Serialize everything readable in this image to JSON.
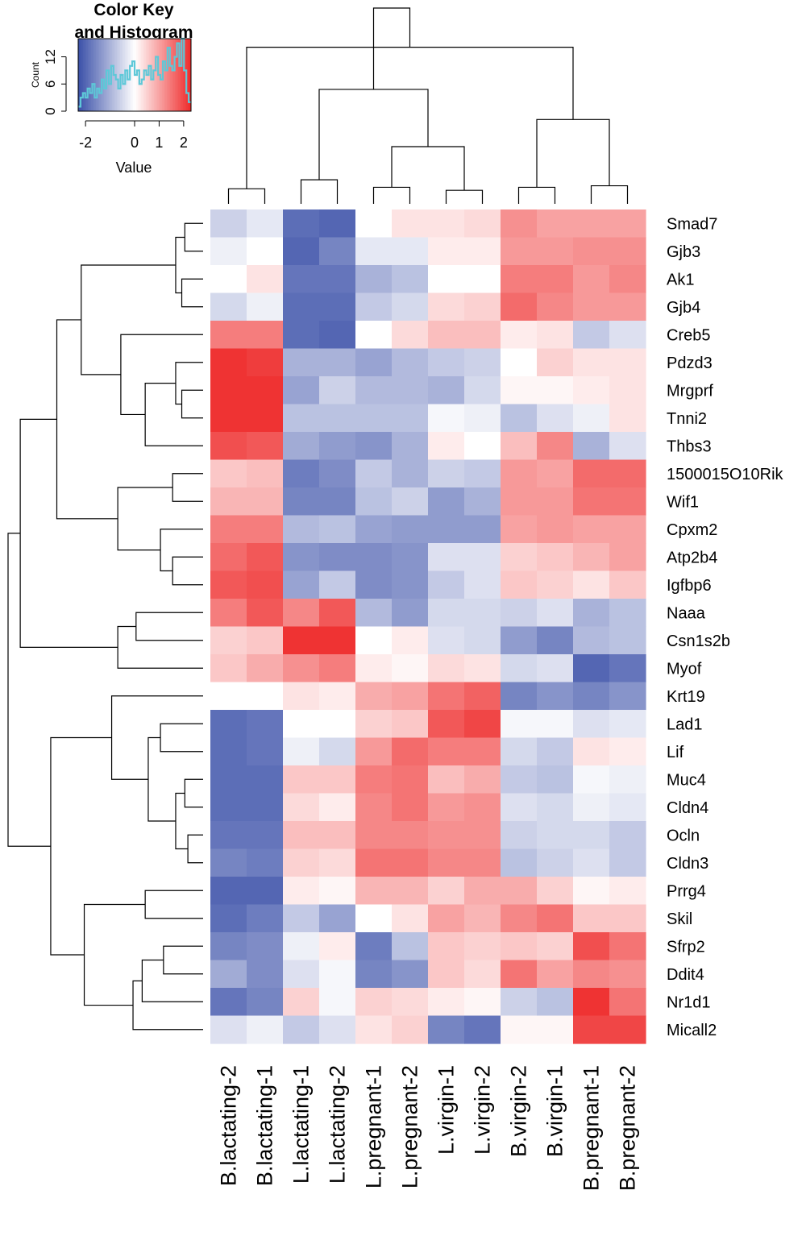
{
  "chart_data": {
    "type": "heatmap",
    "title": "",
    "colors": {
      "low": "#3a4fa8",
      "mid": "#ffffff",
      "high": "#ee2a2a",
      "histogram": "#5ec8d8"
    },
    "color_key": {
      "title_line1": "Color Key",
      "title_line2": "and Histogram",
      "xlabel": "Value",
      "ylabel": "Count",
      "xticks": [
        "-2",
        "0",
        "1",
        "2"
      ],
      "xtick_values": [
        -2,
        0,
        1,
        2
      ],
      "yticks": [
        "0",
        "6",
        "12"
      ],
      "ytick_values": [
        0,
        6,
        12
      ],
      "range": [
        -2.3,
        2.3
      ],
      "ylim": [
        0,
        16
      ],
      "histogram": [
        1,
        3,
        4,
        3,
        5,
        4,
        6,
        3,
        5,
        4,
        7,
        5,
        9,
        6,
        10,
        8,
        7,
        5,
        8,
        6,
        9,
        7,
        10,
        11,
        8,
        9,
        6,
        7,
        9,
        8,
        10,
        7,
        9,
        12,
        8,
        7,
        11,
        9,
        14,
        10,
        9,
        12,
        15,
        10,
        16,
        9,
        4,
        2
      ]
    },
    "columns": [
      "B.lactating-2",
      "B.lactating-1",
      "L.lactating-1",
      "L.lactating-2",
      "L.pregnant-1",
      "L.pregnant-2",
      "L.virgin-1",
      "L.virgin-2",
      "B.virgin-2",
      "B.virgin-1",
      "B.pregnant-1",
      "B.pregnant-2"
    ],
    "rows": [
      "Smad7",
      "Gjb3",
      "Ak1",
      "Gjb4",
      "Creb5",
      "Pdzd3",
      "Mrgprf",
      "Tnni2",
      "Thbs3",
      "1500015O10Rik",
      "Wif1",
      "Cpxm2",
      "Atp2b4",
      "Igfbp6",
      "Naaa",
      "Csn1s2b",
      "Myof",
      "Krt19",
      "Lad1",
      "Lif",
      "Muc4",
      "Cldn4",
      "Ocln",
      "Cldn3",
      "Prrg4",
      "Skil",
      "Sfrp2",
      "Ddit4",
      "Nr1d1",
      "Micall2"
    ],
    "values": [
      [
        -0.6,
        -0.3,
        -1.9,
        -2.0,
        0.0,
        0.3,
        0.3,
        0.4,
        1.2,
        1.0,
        1.0,
        1.0
      ],
      [
        -0.2,
        0.0,
        -2.0,
        -1.6,
        -0.3,
        -0.3,
        0.2,
        0.2,
        1.1,
        1.1,
        1.2,
        1.2
      ],
      [
        0.0,
        0.3,
        -1.8,
        -1.8,
        -1.0,
        -0.8,
        0.0,
        0.0,
        1.4,
        1.4,
        1.1,
        1.3
      ],
      [
        -0.5,
        -0.2,
        -1.9,
        -1.9,
        -0.7,
        -0.5,
        0.4,
        0.5,
        1.6,
        1.3,
        1.1,
        1.1
      ],
      [
        1.4,
        1.4,
        -1.9,
        -2.0,
        0.0,
        0.4,
        0.7,
        0.7,
        0.2,
        0.3,
        -0.7,
        -0.4
      ],
      [
        2.2,
        2.1,
        -1.0,
        -1.0,
        -1.2,
        -0.9,
        -0.7,
        -0.6,
        0.0,
        0.5,
        0.3,
        0.3
      ],
      [
        2.2,
        2.2,
        -1.2,
        -0.6,
        -0.9,
        -0.9,
        -1.0,
        -0.5,
        0.1,
        0.1,
        0.2,
        0.3
      ],
      [
        2.2,
        2.2,
        -0.8,
        -0.8,
        -0.8,
        -0.8,
        -0.1,
        -0.2,
        -0.8,
        -0.4,
        -0.2,
        0.3
      ],
      [
        1.9,
        1.8,
        -1.1,
        -1.3,
        -1.4,
        -1.0,
        0.2,
        0.0,
        0.7,
        1.3,
        -1.0,
        -0.4
      ],
      [
        0.6,
        0.7,
        -1.7,
        -1.5,
        -0.7,
        -1.0,
        -0.6,
        -0.7,
        1.1,
        1.0,
        1.6,
        1.6
      ],
      [
        0.8,
        0.8,
        -1.6,
        -1.6,
        -0.8,
        -0.6,
        -1.3,
        -1.0,
        1.1,
        1.1,
        1.5,
        1.5
      ],
      [
        1.4,
        1.4,
        -0.9,
        -0.8,
        -1.2,
        -1.3,
        -1.3,
        -1.3,
        1.0,
        1.1,
        1.0,
        1.0
      ],
      [
        1.6,
        1.8,
        -1.4,
        -1.5,
        -1.5,
        -1.4,
        -0.4,
        -0.4,
        0.5,
        0.6,
        0.8,
        1.0
      ],
      [
        1.8,
        1.9,
        -1.2,
        -0.7,
        -1.5,
        -1.4,
        -0.7,
        -0.4,
        0.6,
        0.5,
        0.3,
        0.6
      ],
      [
        1.4,
        1.8,
        1.3,
        1.8,
        -0.9,
        -1.3,
        -0.5,
        -0.5,
        -0.6,
        -0.4,
        -1.0,
        -0.8
      ],
      [
        0.5,
        0.6,
        2.2,
        2.2,
        0.0,
        0.2,
        -0.4,
        -0.5,
        -1.3,
        -1.6,
        -0.9,
        -0.8
      ],
      [
        0.6,
        0.9,
        1.2,
        1.4,
        0.2,
        0.1,
        0.4,
        0.3,
        -0.5,
        -0.4,
        -2.0,
        -1.8
      ],
      [
        0.0,
        0.0,
        0.3,
        0.2,
        0.9,
        1.0,
        1.5,
        1.7,
        -1.6,
        -1.4,
        -1.6,
        -1.4
      ],
      [
        -1.9,
        -1.8,
        0.0,
        0.0,
        0.5,
        0.6,
        1.8,
        2.0,
        -0.1,
        -0.1,
        -0.4,
        -0.3
      ],
      [
        -1.9,
        -1.8,
        -0.2,
        -0.5,
        1.1,
        1.6,
        1.4,
        1.4,
        -0.5,
        -0.7,
        0.3,
        0.2
      ],
      [
        -1.9,
        -1.9,
        0.6,
        0.6,
        1.4,
        1.5,
        0.7,
        0.9,
        -0.7,
        -0.8,
        -0.1,
        -0.2
      ],
      [
        -1.9,
        -1.9,
        0.4,
        0.2,
        1.3,
        1.5,
        1.1,
        1.2,
        -0.4,
        -0.5,
        -0.2,
        -0.3
      ],
      [
        -1.8,
        -1.8,
        0.7,
        0.7,
        1.3,
        1.3,
        1.2,
        1.2,
        -0.6,
        -0.5,
        -0.5,
        -0.7
      ],
      [
        -1.6,
        -1.7,
        0.5,
        0.4,
        1.5,
        1.5,
        1.3,
        1.3,
        -0.8,
        -0.6,
        -0.4,
        -0.7
      ],
      [
        -2.0,
        -2.0,
        0.2,
        0.1,
        0.8,
        0.8,
        0.5,
        0.9,
        0.9,
        0.5,
        0.1,
        0.2
      ],
      [
        -1.9,
        -1.7,
        -0.7,
        -1.2,
        0.0,
        0.3,
        1.0,
        0.8,
        1.3,
        1.5,
        0.6,
        0.6
      ],
      [
        -1.6,
        -1.5,
        -0.2,
        0.2,
        -1.7,
        -0.8,
        0.6,
        0.5,
        0.6,
        0.5,
        1.9,
        1.5
      ],
      [
        -1.1,
        -1.5,
        -0.4,
        -0.1,
        -1.6,
        -1.4,
        0.6,
        0.4,
        1.5,
        1.0,
        1.3,
        1.2
      ],
      [
        -1.8,
        -1.6,
        0.5,
        -0.1,
        0.5,
        0.4,
        0.2,
        0.1,
        -0.6,
        -0.8,
        2.2,
        1.5
      ],
      [
        -0.4,
        -0.2,
        -0.7,
        -0.4,
        0.3,
        0.5,
        -1.6,
        -1.8,
        0.1,
        0.1,
        2.0,
        2.0
      ]
    ],
    "col_dendrogram": [
      {
        "a": 0,
        "b": 1,
        "h": 0.5
      },
      {
        "a": 2,
        "b": 3,
        "h": 0.8
      },
      {
        "a": 4,
        "b": 5,
        "h": 0.55
      },
      {
        "a": 6,
        "b": 7,
        "h": 0.45
      },
      {
        "a": 8,
        "b": 9,
        "h": 0.55
      },
      {
        "a": 10,
        "b": 11,
        "h": 0.6
      },
      {
        "a": 14,
        "b": 15,
        "h": 1.9
      },
      {
        "a": 16,
        "b": 17,
        "h": 2.8
      },
      {
        "a": 13,
        "b": 18,
        "h": 3.8
      },
      {
        "a": 12,
        "b": 19,
        "h": 5.2
      },
      {
        "a": 20,
        "b": 21,
        "h": 6.5
      }
    ],
    "row_dendrogram": [
      {
        "a": 0,
        "b": 1,
        "h": 0.3
      },
      {
        "a": 2,
        "b": 3,
        "h": 0.35
      },
      {
        "a": 30,
        "b": 31,
        "h": 0.45
      },
      {
        "a": 6,
        "b": 7,
        "h": 0.35
      },
      {
        "a": 5,
        "b": 33,
        "h": 0.45
      },
      {
        "a": 34,
        "b": 8,
        "h": 0.95
      },
      {
        "a": 4,
        "b": 35,
        "h": 1.35
      },
      {
        "a": 32,
        "b": 36,
        "h": 2.0
      },
      {
        "a": 9,
        "b": 10,
        "h": 0.5
      },
      {
        "a": 12,
        "b": 13,
        "h": 0.5
      },
      {
        "a": 11,
        "b": 39,
        "h": 0.7
      },
      {
        "a": 38,
        "b": 40,
        "h": 1.4
      },
      {
        "a": 37,
        "b": 41,
        "h": 2.4
      },
      {
        "a": 14,
        "b": 15,
        "h": 1.1
      },
      {
        "a": 43,
        "b": 16,
        "h": 1.4
      },
      {
        "a": 42,
        "b": 44,
        "h": 3.0
      },
      {
        "a": 20,
        "b": 21,
        "h": 0.3
      },
      {
        "a": 22,
        "b": 23,
        "h": 0.25
      },
      {
        "a": 46,
        "b": 47,
        "h": 0.45
      },
      {
        "a": 18,
        "b": 19,
        "h": 0.7
      },
      {
        "a": 49,
        "b": 48,
        "h": 0.9
      },
      {
        "a": 17,
        "b": 50,
        "h": 1.5
      },
      {
        "a": 24,
        "b": 25,
        "h": 0.95
      },
      {
        "a": 26,
        "b": 27,
        "h": 0.65
      },
      {
        "a": 53,
        "b": 28,
        "h": 1.0
      },
      {
        "a": 54,
        "b": 29,
        "h": 1.15
      },
      {
        "a": 52,
        "b": 55,
        "h": 1.95
      },
      {
        "a": 51,
        "b": 56,
        "h": 2.5
      },
      {
        "a": 45,
        "b": 57,
        "h": 3.2
      }
    ]
  }
}
